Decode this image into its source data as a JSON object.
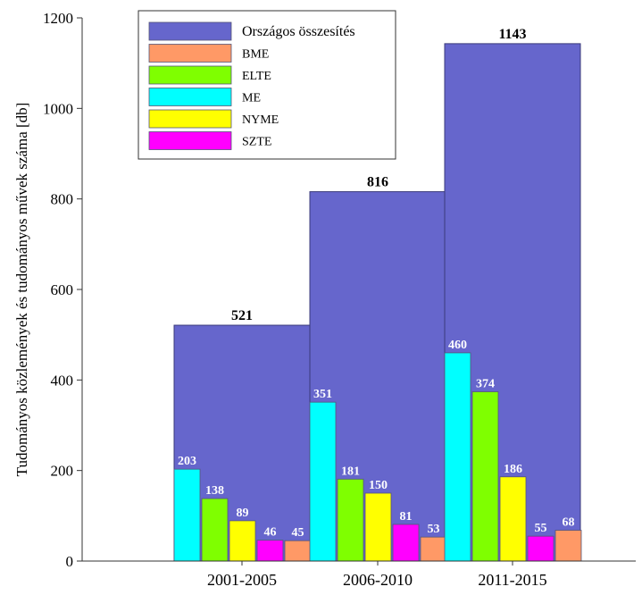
{
  "chart_data": {
    "type": "bar",
    "title": "",
    "xlabel": "",
    "ylabel": "Tudományos közlemények és tudományos művek száma [db]",
    "ylim": [
      0,
      1200
    ],
    "yticks": [
      "0",
      "200",
      "400",
      "600",
      "800",
      "1000",
      "1200"
    ],
    "grid": false,
    "legend_position": "top-left",
    "categories": [
      "2001-2005",
      "2006-2010",
      "2011-2015"
    ],
    "total": {
      "name": "Országos összesítés",
      "color": "#6666CC",
      "values": [
        521,
        816,
        1143
      ]
    },
    "series": [
      {
        "name": "ME",
        "color": "#00FFFF",
        "values": [
          203,
          351,
          460
        ]
      },
      {
        "name": "ELTE",
        "color": "#7FFF00",
        "values": [
          138,
          181,
          374
        ]
      },
      {
        "name": "NYME",
        "color": "#FFFF00",
        "values": [
          89,
          150,
          186
        ]
      },
      {
        "name": "SZTE",
        "color": "#FF00FF",
        "values": [
          46,
          81,
          55
        ]
      },
      {
        "name": "BME",
        "color": "#FF9966",
        "values": [
          45,
          53,
          68
        ]
      }
    ],
    "legend_order": [
      "Országos összesítés",
      "BME",
      "ELTE",
      "ME",
      "NYME",
      "SZTE"
    ]
  }
}
